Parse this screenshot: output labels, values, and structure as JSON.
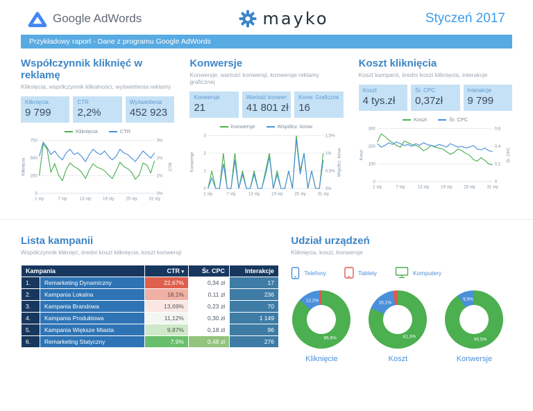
{
  "colors": {
    "accent_blue": "#3d85c6",
    "banner_blue": "#58aae2",
    "card_bg": "#c5e1f5",
    "chart_green": "#4caf50",
    "chart_blue": "#4a90d9",
    "red": "#e2574c",
    "table_header_navy": "#17375e",
    "table_name_blue": "#2e74b5",
    "table_interactions_blue": "#3e7ca6"
  },
  "header": {
    "google": "Google",
    "adwords": "AdWords",
    "mayko": "mayko",
    "period": "Styczeń 2017"
  },
  "banner": "Przykładowy raport  - Dane z programu Google AdWords",
  "kpi_sections": [
    {
      "title": "Współczynnik kliknięć w reklamę",
      "subtitle": "Kliknięcia, współczynnik klikalności, wyświetlenia reklamy",
      "cards": [
        {
          "label": "Kliknięcia",
          "value": "9 799"
        },
        {
          "label": "CTR",
          "value": "2,2%"
        },
        {
          "label": "Wyświetlenia",
          "value": "452 923"
        }
      ]
    },
    {
      "title": "Konwersje",
      "subtitle": "Konwersje, wartość konwersji, konwersje reklamy graficznej",
      "cards": [
        {
          "label": "Konwersje",
          "value": "21"
        },
        {
          "label": "Wartość konwersji",
          "value": "41 801 zł"
        },
        {
          "label": "Konw. Graficzne",
          "value": "16"
        }
      ]
    },
    {
      "title": "Koszt kliknięcia",
      "subtitle": "Koszt kampanii, średni koszt kliknięcia, interakcje",
      "cards": [
        {
          "label": "Koszt",
          "value": "4 tys.zł"
        },
        {
          "label": "Śr. CPC",
          "value": "0,37zł"
        },
        {
          "label": "Interakcje",
          "value": "9 799"
        }
      ]
    }
  ],
  "chart_data": [
    {
      "type": "line",
      "title": "",
      "x_tick_labels": [
        "1 sty",
        "7 sty",
        "13 sty",
        "19 sty",
        "25 sty",
        "31 sty"
      ],
      "x_tick_indices": [
        0,
        6,
        12,
        18,
        24,
        30
      ],
      "left_axis": {
        "label": "Kliknięcia",
        "min": 0,
        "max": 750,
        "ticks": [
          "0",
          "250",
          "500",
          "750"
        ]
      },
      "right_axis": {
        "label": "CTR",
        "min": 0,
        "max": 3,
        "ticks": [
          "0%",
          "1%",
          "2%",
          "3%"
        ]
      },
      "series": [
        {
          "name": "Kliknięcia",
          "axis": "left",
          "color": "#4caf50",
          "values": [
            250,
            700,
            630,
            300,
            420,
            260,
            180,
            340,
            430,
            380,
            350,
            300,
            210,
            330,
            420,
            370,
            350,
            320,
            260,
            210,
            320,
            440,
            380,
            350,
            300,
            200,
            260,
            430,
            400,
            290,
            460
          ]
        },
        {
          "name": "CTR",
          "axis": "right",
          "color": "#4a90d9",
          "values": [
            2.1,
            2.9,
            2.6,
            2.2,
            2.4,
            2.1,
            1.9,
            2.3,
            2.5,
            2.2,
            2.3,
            2.1,
            1.8,
            2.2,
            2.5,
            2.3,
            2.2,
            2.4,
            2.1,
            1.9,
            2.1,
            2.5,
            2.3,
            2.2,
            2.0,
            1.8,
            2.1,
            2.4,
            2.2,
            2.0,
            2.3
          ]
        }
      ]
    },
    {
      "type": "line",
      "title": "",
      "x_tick_labels": [
        "1 sty",
        "7 sty",
        "13 sty",
        "19 sty",
        "25 sty",
        "31 sty"
      ],
      "x_tick_indices": [
        0,
        6,
        12,
        18,
        24,
        30
      ],
      "left_axis": {
        "label": "Konwersje",
        "min": 0,
        "max": 3,
        "ticks": [
          "0",
          "1",
          "2",
          "3"
        ]
      },
      "right_axis": {
        "label": "Współcz. konw.",
        "min": 0,
        "max": 1.5,
        "ticks": [
          "0%",
          "0,5%",
          "1%",
          "1,5%"
        ]
      },
      "series": [
        {
          "name": "Konwersje",
          "axis": "left",
          "color": "#4caf50",
          "values": [
            0,
            1,
            0,
            0,
            2,
            0,
            0,
            2,
            0,
            1,
            0,
            0,
            1,
            0,
            0,
            1,
            2,
            0,
            1,
            0,
            0,
            1,
            0,
            3,
            1,
            2,
            0,
            1,
            0,
            0,
            2
          ]
        },
        {
          "name": "Współcz. konw.",
          "axis": "right",
          "color": "#4a90d9",
          "values": [
            0,
            0.3,
            0,
            0,
            0.7,
            0,
            0,
            0.8,
            0,
            0.4,
            0,
            0,
            0.4,
            0,
            0,
            0.4,
            0.9,
            0,
            0.4,
            0,
            0,
            0.5,
            0,
            1.4,
            0.4,
            1.0,
            0,
            0.5,
            0,
            0,
            0.8
          ]
        }
      ]
    },
    {
      "type": "line",
      "title": "",
      "x_tick_labels": [
        "1 sty",
        "7 sty",
        "13 sty",
        "19 sty",
        "25 sty",
        "31 sty"
      ],
      "x_tick_indices": [
        0,
        6,
        12,
        18,
        24,
        30
      ],
      "left_axis": {
        "label": "Koszt",
        "min": 0,
        "max": 300,
        "ticks": [
          "0",
          "100",
          "200",
          "300"
        ]
      },
      "right_axis": {
        "label": "Śr. CPC",
        "min": 0,
        "max": 0.6,
        "ticks": [
          "0",
          "0,2",
          "0,4",
          "0,6"
        ]
      },
      "series": [
        {
          "name": "Koszt",
          "axis": "left",
          "color": "#4caf50",
          "values": [
            225,
            270,
            255,
            235,
            220,
            205,
            195,
            230,
            220,
            210,
            205,
            195,
            175,
            185,
            205,
            195,
            190,
            185,
            170,
            155,
            165,
            185,
            175,
            160,
            150,
            125,
            115,
            135,
            120,
            100,
            95
          ]
        },
        {
          "name": "Śr. CPC",
          "axis": "right",
          "color": "#4a90d9",
          "values": [
            0.43,
            0.39,
            0.41,
            0.44,
            0.42,
            0.45,
            0.43,
            0.41,
            0.42,
            0.4,
            0.43,
            0.41,
            0.44,
            0.42,
            0.41,
            0.4,
            0.42,
            0.41,
            0.39,
            0.43,
            0.41,
            0.39,
            0.4,
            0.38,
            0.39,
            0.41,
            0.37,
            0.36,
            0.38,
            0.35,
            0.34
          ]
        }
      ]
    },
    {
      "type": "donut",
      "title": "Kliknięcie",
      "slices": [
        {
          "label": "Komputery",
          "value": 86.6,
          "display": "86,6%",
          "color": "#4caf50"
        },
        {
          "label": "Telefony",
          "value": 12.2,
          "display": "12,2%",
          "color": "#4a90d9"
        },
        {
          "label": "Tablety",
          "value": 1.2,
          "display": "",
          "color": "#e2574c"
        }
      ]
    },
    {
      "type": "donut",
      "title": "Koszt",
      "slices": [
        {
          "label": "Komputery",
          "value": 81.3,
          "display": "81,3%",
          "color": "#4caf50"
        },
        {
          "label": "Telefony",
          "value": 16.1,
          "display": "16,1%",
          "color": "#4a90d9"
        },
        {
          "label": "Tablety",
          "value": 2.6,
          "display": "",
          "color": "#e2574c"
        }
      ]
    },
    {
      "type": "donut",
      "title": "Konwersje",
      "slices": [
        {
          "label": "Komputery",
          "value": 90.5,
          "display": "90,5%",
          "color": "#4caf50"
        },
        {
          "label": "Telefony",
          "value": 9.5,
          "display": "9,5%",
          "color": "#4a90d9"
        },
        {
          "label": "Tablety",
          "value": 0,
          "display": "",
          "color": "#e2574c"
        }
      ]
    }
  ],
  "campaigns": {
    "title": "Lista kampanii",
    "subtitle": "Współczynnik kliknięć, średni koszt kliknięcia, koszt konwersji",
    "headers": {
      "campaign": "Kampania",
      "ctr": "CTR",
      "cpc": "Śr. CPC",
      "interactions": "Interakcje"
    },
    "sort_icon": "▾",
    "rows": [
      {
        "num": "1.",
        "name": "Remarketing Dynamiczny",
        "ctr": "22,67%",
        "ctr_bg": "#df5f4d",
        "ctr_fg": "#ffffff",
        "cpc": "0,34 zł",
        "cpc_bg": "#ffffff",
        "cpc_fg": "#4a5560",
        "int": "17"
      },
      {
        "num": "2.",
        "name": "Kampania Lokalna",
        "ctr": "18,1%",
        "ctr_bg": "#f0b0a4",
        "ctr_fg": "#5a4a46",
        "cpc": "0,11 zł",
        "cpc_bg": "#ffffff",
        "cpc_fg": "#4a5560",
        "int": "236"
      },
      {
        "num": "3.",
        "name": "Kampania Brandowa",
        "ctr": "13,69%",
        "ctr_bg": "#fae7e3",
        "ctr_fg": "#55585c",
        "cpc": "0,23 zł",
        "cpc_bg": "#ffffff",
        "cpc_fg": "#4a5560",
        "int": "70"
      },
      {
        "num": "4.",
        "name": "Kampania Produktowa",
        "ctr": "11,12%",
        "ctr_bg": "#f3f7f2",
        "ctr_fg": "#55585c",
        "cpc": "0,30 zł",
        "cpc_bg": "#ffffff",
        "cpc_fg": "#4a5560",
        "int": "1 149"
      },
      {
        "num": "5.",
        "name": "Kampania Większe Miasta",
        "ctr": "9,87%",
        "ctr_bg": "#cfe8c9",
        "ctr_fg": "#4c5a4c",
        "cpc": "0,18 zł",
        "cpc_bg": "#ffffff",
        "cpc_fg": "#4a5560",
        "int": "96"
      },
      {
        "num": "6.",
        "name": "Remarketing Statyczny",
        "ctr": "7,9%",
        "ctr_bg": "#68bf6b",
        "ctr_fg": "#ffffff",
        "cpc": "0,48 zł",
        "cpc_bg": "#93c47d",
        "cpc_fg": "#ffffff",
        "int": "276"
      }
    ]
  },
  "devices": {
    "title": "Udział urządzeń",
    "subtitle": "Kliknięcia, koszt, konwersje",
    "legend": [
      {
        "label": "Telefony",
        "color": "#4a90d9"
      },
      {
        "label": "Tablety",
        "color": "#e2574c"
      },
      {
        "label": "Komputery",
        "color": "#4caf50"
      }
    ]
  }
}
